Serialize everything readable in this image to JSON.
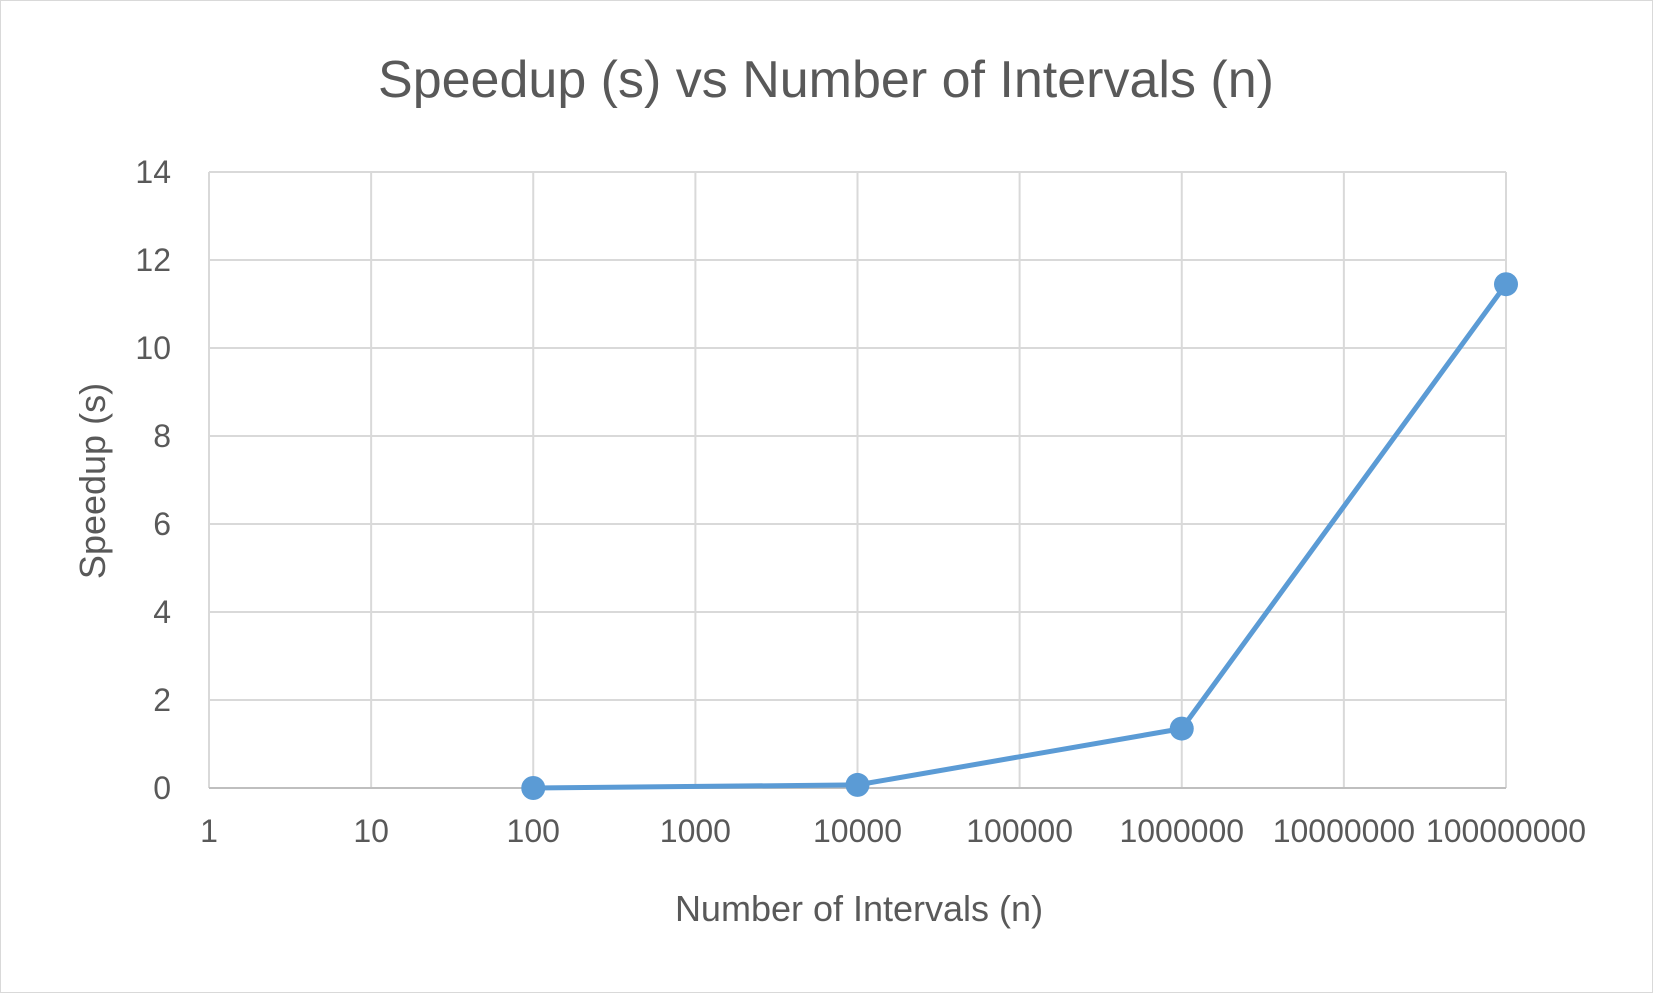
{
  "chart_data": {
    "type": "line",
    "title": "Speedup (s) vs Number of Intervals (n)",
    "xlabel": "Number of Intervals (n)",
    "ylabel": "Speedup (s)",
    "x_scale": "log10",
    "xlim": [
      1,
      100000000
    ],
    "ylim": [
      0,
      14
    ],
    "x_ticks": [
      "1",
      "10",
      "100",
      "1000",
      "10000",
      "100000",
      "1000000",
      "10000000",
      "100000000"
    ],
    "y_ticks": [
      "0",
      "2",
      "4",
      "6",
      "8",
      "10",
      "12",
      "14"
    ],
    "grid": true,
    "legend": "none",
    "series": [
      {
        "color": "#5b9bd5",
        "x": [
          100,
          10000,
          1000000,
          100000000
        ],
        "y": [
          0.0,
          0.07,
          1.35,
          11.45
        ]
      }
    ]
  }
}
